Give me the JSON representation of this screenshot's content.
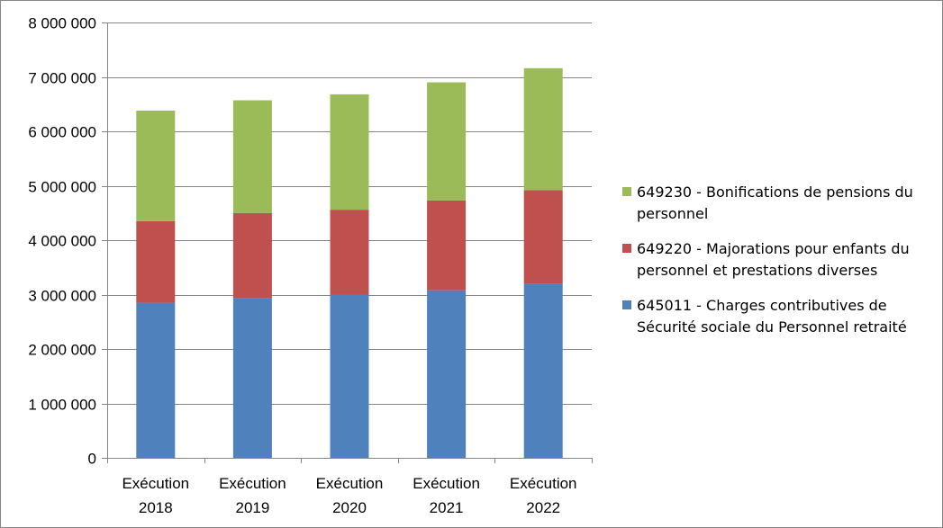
{
  "chart_data": {
    "type": "bar",
    "stacked": true,
    "categories": [
      [
        "Exécution",
        "2018"
      ],
      [
        "Exécution",
        "2019"
      ],
      [
        "Exécution",
        "2020"
      ],
      [
        "Exécution",
        "2021"
      ],
      [
        "Exécution",
        "2022"
      ]
    ],
    "series": [
      {
        "name": "645011 - Charges contributives de Sécurité sociale du Personnel retraité",
        "legend_lines": [
          "645011 - Charges contributives de",
          "Sécurité sociale du Personnel retraité"
        ],
        "color": "#4F81BD",
        "values": [
          2850000,
          2930000,
          3000000,
          3080000,
          3200000
        ]
      },
      {
        "name": "649220 - Majorations pour enfants du personnel et prestations diverses",
        "legend_lines": [
          "649220 - Majorations pour enfants du",
          "personnel et prestations diverses"
        ],
        "color": "#C0504D",
        "values": [
          1500000,
          1570000,
          1560000,
          1650000,
          1720000
        ]
      },
      {
        "name": "649230 - Bonifications de pensions du personnel",
        "legend_lines": [
          "649230 - Bonifications de pensions du",
          "personnel"
        ],
        "color": "#9BBB59",
        "values": [
          2030000,
          2070000,
          2120000,
          2170000,
          2240000
        ]
      }
    ],
    "ylim": [
      0,
      8000000
    ],
    "yticks": [
      0,
      1000000,
      2000000,
      3000000,
      4000000,
      5000000,
      6000000,
      7000000,
      8000000
    ],
    "ytick_labels": [
      "0",
      "1 000 000",
      "2 000 000",
      "3 000 000",
      "4 000 000",
      "5 000 000",
      "6 000 000",
      "7 000 000",
      "8 000 000"
    ],
    "grid": true,
    "legend_position": "right",
    "title": "",
    "xlabel": "",
    "ylabel": "",
    "axis_color": "#868686",
    "grid_color": "#868686"
  }
}
